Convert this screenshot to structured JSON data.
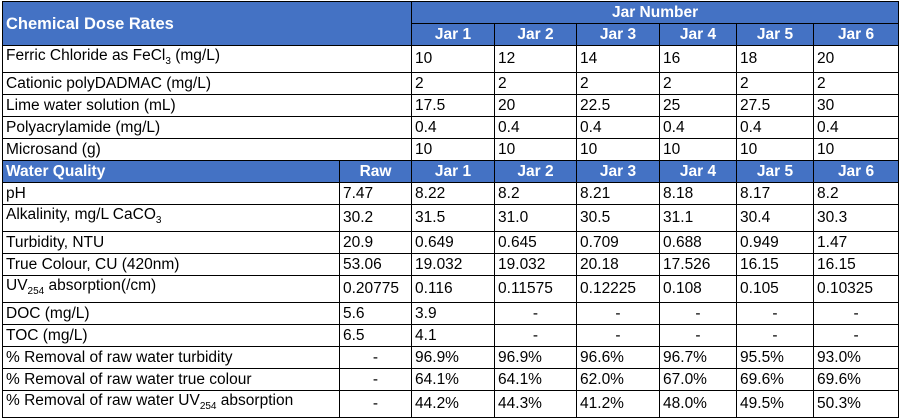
{
  "dose_section": {
    "title": "Chemical Dose Rates",
    "jar_number_label": "Jar Number",
    "jars": [
      "Jar 1",
      "Jar 2",
      "Jar 3",
      "Jar 4",
      "Jar 5",
      "Jar 6"
    ],
    "rows": [
      {
        "label_pre": "Ferric Chloride as FeCl",
        "label_sub": "3",
        "label_post": " (mg/L)",
        "values": [
          "10",
          "12",
          "14",
          "16",
          "18",
          "20"
        ]
      },
      {
        "label_pre": "Cationic polyDADMAC (mg/L)",
        "label_sub": "",
        "label_post": "",
        "values": [
          "2",
          "2",
          "2",
          "2",
          "2",
          "2"
        ]
      },
      {
        "label_pre": "Lime water solution (mL)",
        "label_sub": "",
        "label_post": "",
        "values": [
          "17.5",
          "20",
          "22.5",
          "25",
          "27.5",
          "30"
        ]
      },
      {
        "label_pre": "Polyacrylamide (mg/L)",
        "label_sub": "",
        "label_post": "",
        "values": [
          "0.4",
          "0.4",
          "0.4",
          "0.4",
          "0.4",
          "0.4"
        ]
      },
      {
        "label_pre": "Microsand (g)",
        "label_sub": "",
        "label_post": "",
        "values": [
          "10",
          "10",
          "10",
          "10",
          "10",
          "10"
        ]
      }
    ]
  },
  "quality_section": {
    "title": "Water Quality",
    "raw_label": "Raw",
    "jars": [
      "Jar 1",
      "Jar 2",
      "Jar 3",
      "Jar 4",
      "Jar 5",
      "Jar 6"
    ],
    "rows": [
      {
        "label_pre": "pH",
        "label_sub": "",
        "label_post": "",
        "raw": "7.47",
        "values": [
          "8.22",
          "8.2",
          "8.21",
          "8.18",
          "8.17",
          "8.2"
        ]
      },
      {
        "label_pre": "Alkalinity, mg/L CaCO",
        "label_sub": "3",
        "label_post": "",
        "raw": "30.2",
        "values": [
          "31.5",
          "31.0",
          "30.5",
          "31.1",
          "30.4",
          "30.3"
        ]
      },
      {
        "label_pre": "Turbidity, NTU",
        "label_sub": "",
        "label_post": "",
        "raw": "20.9",
        "values": [
          "0.649",
          "0.645",
          "0.709",
          "0.688",
          "0.949",
          "1.47"
        ]
      },
      {
        "label_pre": "True Colour, CU (420nm)",
        "label_sub": "",
        "label_post": "",
        "raw": "53.06",
        "values": [
          "19.032",
          "19.032",
          "20.18",
          "17.526",
          "16.15",
          "16.15"
        ]
      },
      {
        "label_pre": "UV",
        "label_sub": "254",
        "label_post": " absorption(/cm)",
        "raw": "0.20775",
        "values": [
          "0.116",
          "0.11575",
          "0.12225",
          "0.108",
          "0.105",
          "0.10325"
        ]
      },
      {
        "label_pre": "DOC (mg/L)",
        "label_sub": "",
        "label_post": "",
        "raw": "5.6",
        "values": [
          "3.9",
          "-",
          "-",
          "-",
          "-",
          "-"
        ]
      },
      {
        "label_pre": "TOC (mg/L)",
        "label_sub": "",
        "label_post": "",
        "raw": "6.5",
        "values": [
          "4.1",
          "-",
          "-",
          "-",
          "-",
          "-"
        ]
      },
      {
        "label_pre": "% Removal of raw water turbidity",
        "label_sub": "",
        "label_post": "",
        "raw": "-",
        "values": [
          "96.9%",
          "96.9%",
          "96.6%",
          "96.7%",
          "95.5%",
          "93.0%"
        ]
      },
      {
        "label_pre": "% Removal of raw water true colour",
        "label_sub": "",
        "label_post": "",
        "raw": "-",
        "values": [
          "64.1%",
          "64.1%",
          "62.0%",
          "67.0%",
          "69.6%",
          "69.6%"
        ]
      },
      {
        "label_pre": "% Removal of raw water UV",
        "label_sub": "254",
        "label_post": " absorption",
        "raw": "-",
        "values": [
          "44.2%",
          "44.3%",
          "41.2%",
          "48.0%",
          "49.5%",
          "50.3%"
        ]
      }
    ]
  }
}
